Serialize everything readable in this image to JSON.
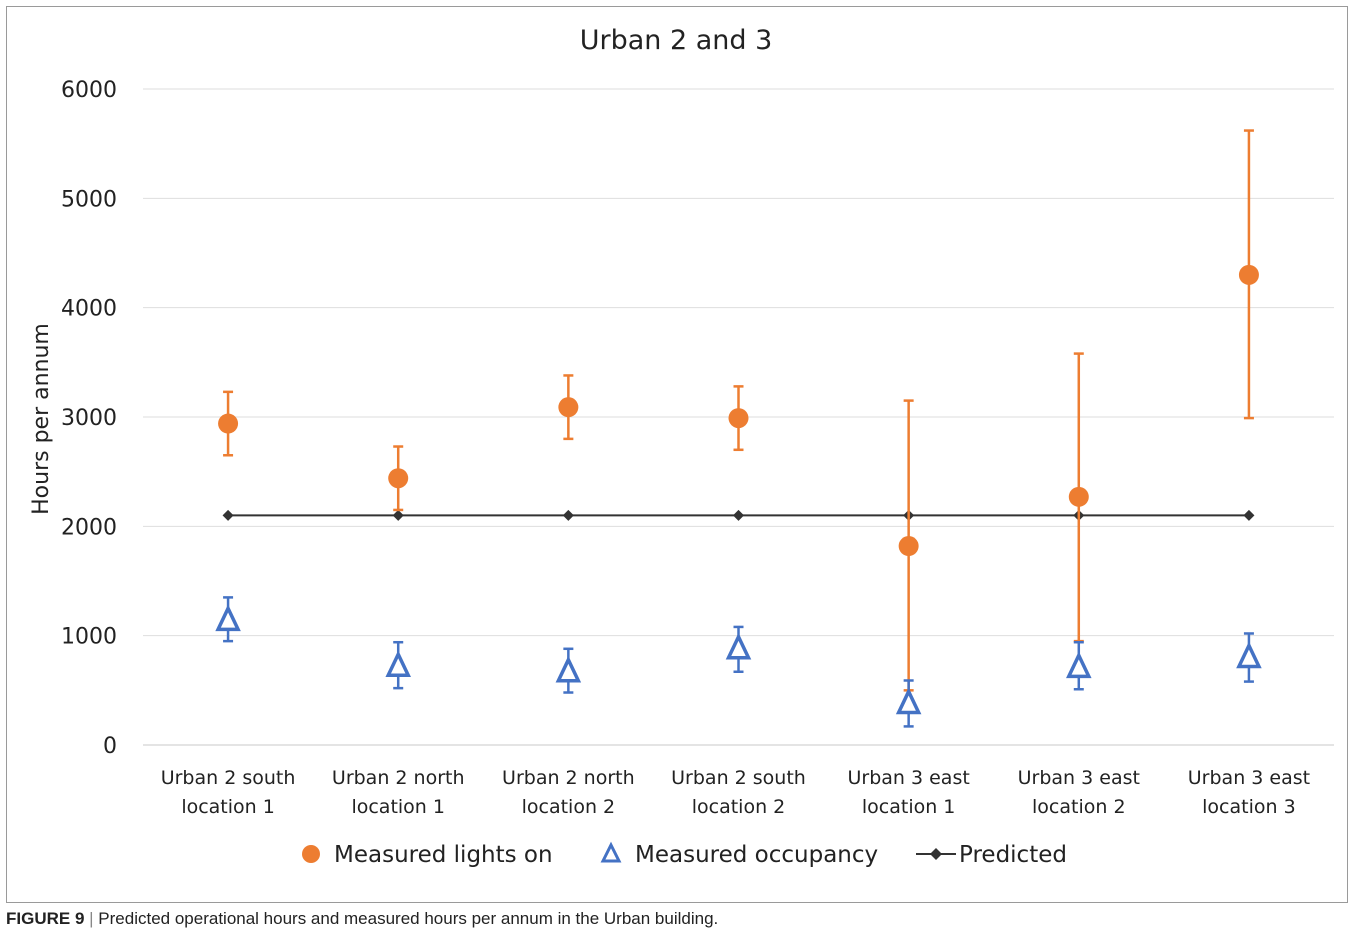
{
  "chart_data": {
    "type": "scatter",
    "title": "Urban 2 and 3",
    "ylabel": "Hours per annum",
    "xlabel": "",
    "ylim": [
      0,
      6000
    ],
    "yticks": [
      0,
      1000,
      2000,
      3000,
      4000,
      5000,
      6000
    ],
    "grid": true,
    "legend_position": "bottom",
    "categories": [
      [
        "Urban 2 south",
        "location 1"
      ],
      [
        "Urban 2 north",
        "location 1"
      ],
      [
        "Urban 2 north",
        "location 2"
      ],
      [
        "Urban 2 south",
        "location 2"
      ],
      [
        "Urban 3 east",
        "location 1"
      ],
      [
        "Urban 3 east",
        "location 2"
      ],
      [
        "Urban 3 east",
        "location 3"
      ]
    ],
    "series": [
      {
        "name": "Measured lights on",
        "marker": "circle",
        "color": "#ed7d31",
        "values": [
          2940,
          2440,
          3090,
          2990,
          1820,
          2270,
          4300
        ],
        "error_low": [
          2650,
          2150,
          2800,
          2700,
          500,
          950,
          2990
        ],
        "error_high": [
          3230,
          2730,
          3380,
          3280,
          3150,
          3580,
          5620
        ]
      },
      {
        "name": "Measured occupancy",
        "marker": "triangle",
        "color": "#4472c4",
        "values": [
          1140,
          720,
          670,
          880,
          380,
          710,
          800
        ],
        "error_low": [
          950,
          520,
          480,
          670,
          170,
          510,
          580
        ],
        "error_high": [
          1350,
          940,
          880,
          1080,
          590,
          940,
          1020
        ]
      },
      {
        "name": "Predicted",
        "marker": "diamond-line",
        "color": "#333333",
        "values": [
          2100,
          2100,
          2100,
          2100,
          2100,
          2100,
          2100
        ]
      }
    ]
  },
  "caption": {
    "figure_label": "FIGURE 9",
    "separator": "|",
    "text": "Predicted operational hours and measured hours per annum in the Urban building."
  }
}
